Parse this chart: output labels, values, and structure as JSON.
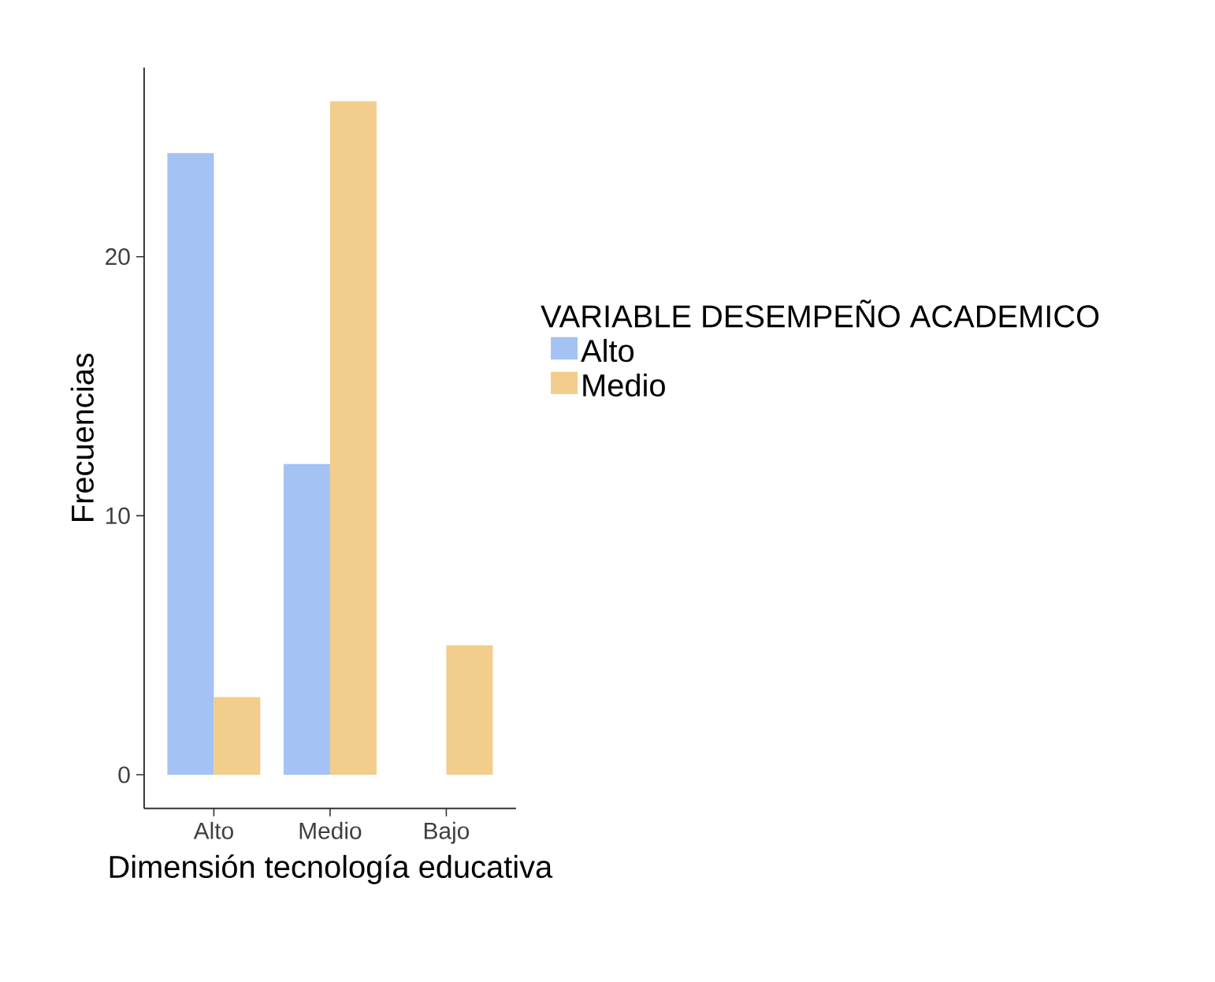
{
  "chart_data": {
    "type": "bar",
    "xlabel": "Dimensión tecnología educativa",
    "ylabel": "Frecuencias",
    "legend_title": "VARIABLE DESEMPEÑO ACADEMICO",
    "categories": [
      "Alto",
      "Medio",
      "Bajo"
    ],
    "series": [
      {
        "name": "Alto",
        "color": "#a4c2f4",
        "values": [
          24,
          12,
          null
        ]
      },
      {
        "name": "Medio",
        "color": "#f2cd8b",
        "values": [
          3,
          26,
          5
        ]
      }
    ],
    "ylim": [
      -1.3,
      27.3
    ],
    "yticks": [
      0,
      10,
      20
    ],
    "grid": false,
    "legend": "right"
  }
}
